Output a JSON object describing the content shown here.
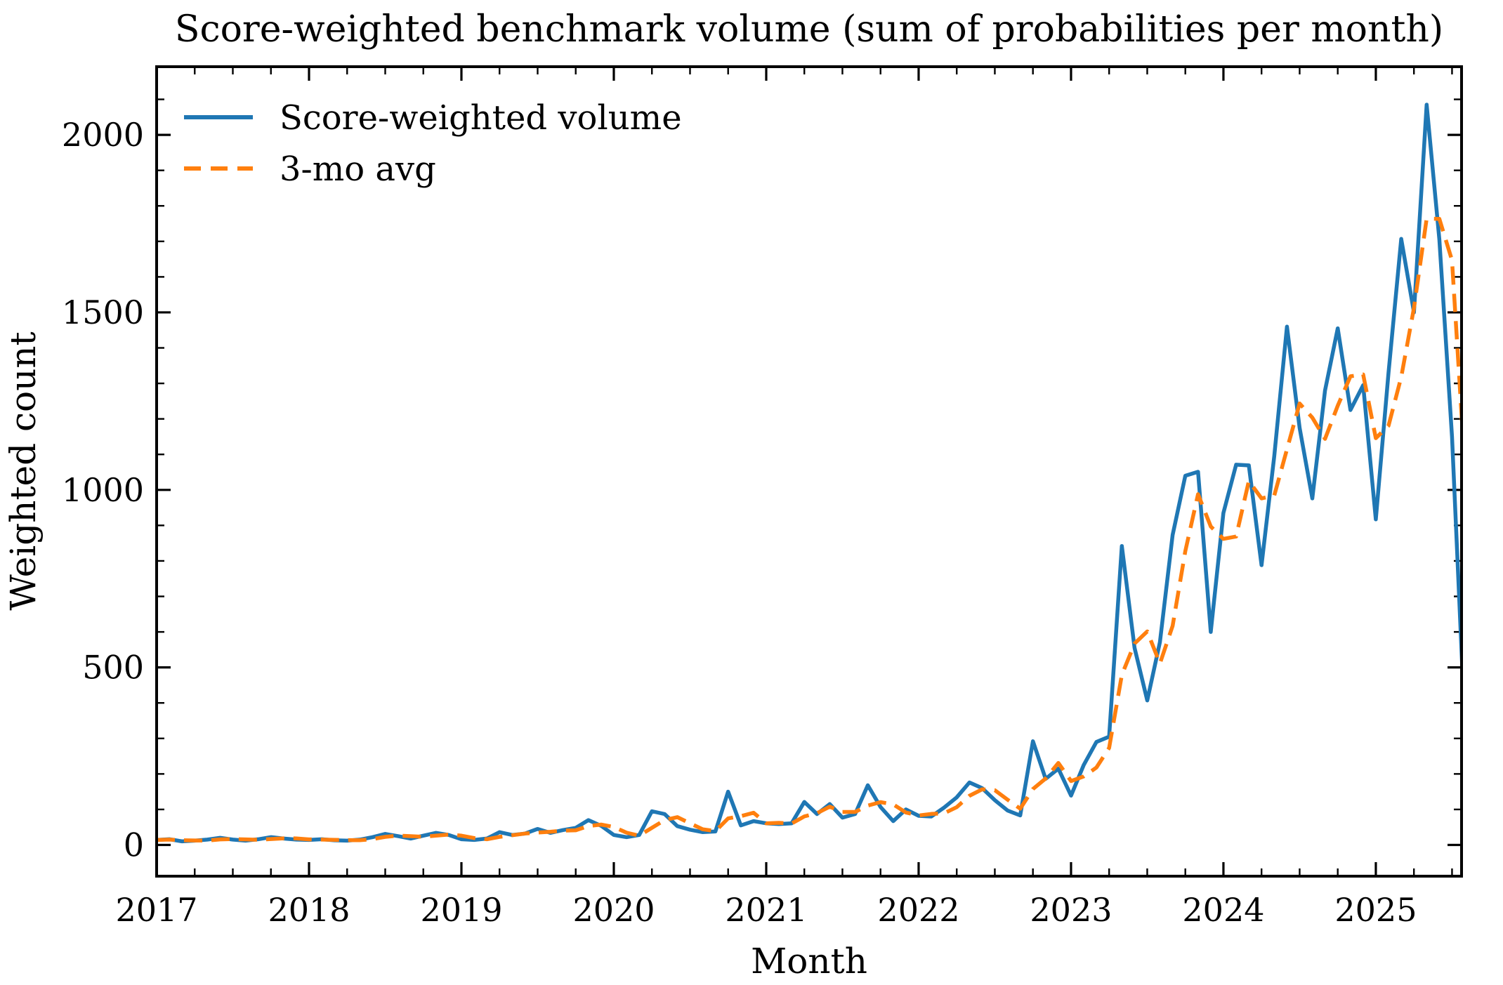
{
  "title": "Score-weighted benchmark volume (sum of probabilities per month)",
  "axes": {
    "xlabel": "Month",
    "ylabel": "Weighted count",
    "x_tick_labels": [
      "2017",
      "2018",
      "2019",
      "2020",
      "2021",
      "2022",
      "2023",
      "2024",
      "2025"
    ],
    "y_tick_labels": [
      "0",
      "500",
      "1000",
      "1500",
      "2000"
    ]
  },
  "legend": {
    "position": "upper left",
    "frame": false,
    "entries": [
      {
        "label": "Score-weighted volume",
        "style": "solid",
        "color": "#1f77b4"
      },
      {
        "label": "3-mo avg",
        "style": "dashed",
        "color": "#ff7f0e"
      }
    ]
  },
  "chart_data": {
    "type": "line",
    "title": "Score-weighted benchmark volume (sum of probabilities per month)",
    "xlabel": "Month",
    "ylabel": "Weighted count",
    "x_start_month": "2017-01",
    "x_end_month": "2025-08",
    "x_step_months": 1,
    "xlim_months_from_start": [
      0,
      102.75
    ],
    "ylim": [
      -88,
      2192
    ],
    "x_major_ticks_years": [
      2017,
      2018,
      2019,
      2020,
      2021,
      2022,
      2023,
      2024,
      2025
    ],
    "x_minor_tick_every_months": 3,
    "y_major_ticks": [
      0,
      500,
      1000,
      1500,
      2000
    ],
    "y_minor_tick_every": 100,
    "grid": false,
    "series": [
      {
        "name": "Score-weighted volume",
        "color": "#1f77b4",
        "line": "solid",
        "values": [
          14,
          16,
          10,
          12,
          15,
          20,
          15,
          12,
          16,
          22,
          18,
          15,
          14,
          16,
          13,
          12,
          15,
          22,
          31,
          25,
          18,
          26,
          34,
          28,
          16,
          14,
          18,
          36,
          28,
          32,
          45,
          34,
          42,
          48,
          70,
          54,
          28,
          22,
          28,
          95,
          87,
          53,
          43,
          36,
          38,
          150,
          55,
          67,
          61,
          59,
          61,
          121,
          87,
          115,
          77,
          87,
          168,
          107,
          67,
          100,
          82,
          80,
          105,
          134,
          176,
          160,
          126,
          97,
          83,
          292,
          186,
          215,
          139,
          225,
          290,
          305,
          842,
          555,
          407,
          571,
          873,
          1040,
          1051,
          600,
          935,
          1071,
          1069,
          788,
          1095,
          1460,
          1175,
          976,
          1280,
          1455,
          1225,
          1295,
          917,
          1330,
          1707,
          1500,
          2085,
          1705,
          1150,
          345
        ]
      },
      {
        "name": "3-mo avg",
        "color": "#ff7f0e",
        "line": "dashed",
        "derived": "rolling_mean(window=3, min_periods=1) of series 'Score-weighted volume'"
      }
    ]
  }
}
